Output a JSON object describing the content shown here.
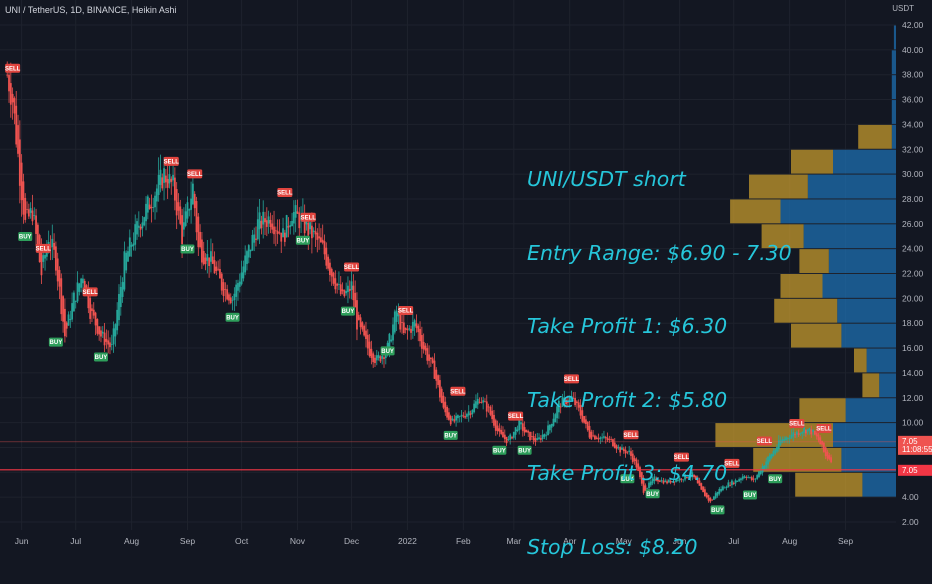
{
  "header": {
    "symbol_line": "UNI / TetherUS, 1D, BINANCE, Heikin Ashi",
    "currency": "USDT"
  },
  "annotation": {
    "lines": [
      "UNI/USDT short",
      "Entry Range: $6.90 - 7.30",
      "Take Profit 1: $6.30",
      "Take Profit 2: $5.80",
      "Take Profit 3: $4.70",
      "Stop Loss: $8.20"
    ]
  },
  "colors": {
    "background": "#131722",
    "up": "#26a69a",
    "down": "#ef5350",
    "annotation": "#26c6da",
    "vp_gold": "#c49a2c",
    "vp_blue": "#1e6fb0",
    "stop_line": "#f23645"
  },
  "chart_data": {
    "type": "candlestick",
    "ylim": [
      1.5,
      43.5
    ],
    "y_ticks": [
      "2.00",
      "4.00",
      "6.00",
      "8.00",
      "10.00",
      "12.00",
      "14.00",
      "16.00",
      "18.00",
      "20.00",
      "22.00",
      "24.00",
      "26.00",
      "28.00",
      "30.00",
      "32.00",
      "34.00",
      "36.00",
      "38.00",
      "40.00",
      "42.00"
    ],
    "x_ticks": [
      "Jun",
      "Jul",
      "Aug",
      "Sep",
      "Oct",
      "Nov",
      "Dec",
      "2022",
      "Feb",
      "Mar",
      "Apr",
      "May",
      "Jun",
      "Jul",
      "Aug",
      "Sep"
    ],
    "price_path": [
      [
        "2021-05-24",
        38.0
      ],
      [
        "2021-05-27",
        36.0
      ],
      [
        "2021-05-31",
        30.0
      ],
      [
        "2021-06-03",
        26.0
      ],
      [
        "2021-06-07",
        27.0
      ],
      [
        "2021-06-12",
        22.0
      ],
      [
        "2021-06-16",
        25.0
      ],
      [
        "2021-06-20",
        23.0
      ],
      [
        "2021-06-25",
        17.0
      ],
      [
        "2021-06-30",
        20.0
      ],
      [
        "2021-07-05",
        22.0
      ],
      [
        "2021-07-09",
        19.0
      ],
      [
        "2021-07-15",
        17.0
      ],
      [
        "2021-07-21",
        16.0
      ],
      [
        "2021-07-28",
        23.0
      ],
      [
        "2021-08-05",
        26.0
      ],
      [
        "2021-08-12",
        28.0
      ],
      [
        "2021-08-19",
        30.0
      ],
      [
        "2021-08-24",
        29.0
      ],
      [
        "2021-08-29",
        25.0
      ],
      [
        "2021-09-04",
        29.0
      ],
      [
        "2021-09-07",
        24.0
      ],
      [
        "2021-09-14",
        23.0
      ],
      [
        "2021-09-20",
        21.0
      ],
      [
        "2021-09-26",
        20.0
      ],
      [
        "2021-10-03",
        23.0
      ],
      [
        "2021-10-10",
        26.0
      ],
      [
        "2021-10-17",
        26.5
      ],
      [
        "2021-10-24",
        25.0
      ],
      [
        "2021-10-29",
        27.0
      ],
      [
        "2021-11-04",
        26.0
      ],
      [
        "2021-11-10",
        25.0
      ],
      [
        "2021-11-15",
        24.0
      ],
      [
        "2021-11-20",
        22.0
      ],
      [
        "2021-11-26",
        20.0
      ],
      [
        "2021-12-01",
        21.0
      ],
      [
        "2021-12-04",
        18.0
      ],
      [
        "2021-12-10",
        16.0
      ],
      [
        "2021-12-15",
        15.0
      ],
      [
        "2021-12-21",
        16.0
      ],
      [
        "2021-12-26",
        19.0
      ],
      [
        "2021-12-30",
        17.0
      ],
      [
        "2022-01-05",
        18.0
      ],
      [
        "2022-01-10",
        16.0
      ],
      [
        "2022-01-16",
        14.0
      ],
      [
        "2022-01-21",
        11.0
      ],
      [
        "2022-01-26",
        10.0
      ],
      [
        "2022-01-31",
        10.5
      ],
      [
        "2022-02-05",
        11.0
      ],
      [
        "2022-02-10",
        12.0
      ],
      [
        "2022-02-15",
        11.0
      ],
      [
        "2022-02-21",
        9.0
      ],
      [
        "2022-02-26",
        8.5
      ],
      [
        "2022-03-04",
        10.0
      ],
      [
        "2022-03-08",
        9.0
      ],
      [
        "2022-03-14",
        8.5
      ],
      [
        "2022-03-20",
        9.5
      ],
      [
        "2022-03-26",
        11.5
      ],
      [
        "2022-04-02",
        12.0
      ],
      [
        "2022-04-06",
        11.0
      ],
      [
        "2022-04-12",
        9.0
      ],
      [
        "2022-04-18",
        8.8
      ],
      [
        "2022-04-24",
        8.5
      ],
      [
        "2022-04-29",
        7.8
      ],
      [
        "2022-05-04",
        7.6
      ],
      [
        "2022-05-08",
        6.5
      ],
      [
        "2022-05-12",
        4.5
      ],
      [
        "2022-05-18",
        5.5
      ],
      [
        "2022-05-25",
        5.2
      ],
      [
        "2022-06-01",
        5.5
      ],
      [
        "2022-06-08",
        5.8
      ],
      [
        "2022-06-13",
        4.5
      ],
      [
        "2022-06-18",
        3.6
      ],
      [
        "2022-06-22",
        4.5
      ],
      [
        "2022-06-27",
        5.0
      ],
      [
        "2022-07-02",
        5.3
      ],
      [
        "2022-07-07",
        5.8
      ],
      [
        "2022-07-12",
        5.3
      ],
      [
        "2022-07-17",
        6.5
      ],
      [
        "2022-07-22",
        7.5
      ],
      [
        "2022-07-27",
        8.5
      ],
      [
        "2022-08-01",
        9.0
      ],
      [
        "2022-08-05",
        9.2
      ],
      [
        "2022-08-09",
        9.5
      ],
      [
        "2022-08-13",
        9.3
      ],
      [
        "2022-08-17",
        8.6
      ],
      [
        "2022-08-21",
        7.3
      ],
      [
        "2022-08-24",
        7.05
      ]
    ],
    "signals": [
      {
        "type": "SELL",
        "date": "2021-05-27",
        "price": 38.0
      },
      {
        "type": "BUY",
        "date": "2021-06-03",
        "price": 25.5
      },
      {
        "type": "SELL",
        "date": "2021-06-13",
        "price": 23.5
      },
      {
        "type": "BUY",
        "date": "2021-06-20",
        "price": 17.0
      },
      {
        "type": "SELL",
        "date": "2021-07-09",
        "price": 20.0
      },
      {
        "type": "BUY",
        "date": "2021-07-15",
        "price": 15.8
      },
      {
        "type": "SELL",
        "date": "2021-08-23",
        "price": 30.5
      },
      {
        "type": "BUY",
        "date": "2021-09-01",
        "price": 24.5
      },
      {
        "type": "SELL",
        "date": "2021-09-05",
        "price": 29.5
      },
      {
        "type": "BUY",
        "date": "2021-09-26",
        "price": 19.0
      },
      {
        "type": "SELL",
        "date": "2021-10-25",
        "price": 28.0
      },
      {
        "type": "BUY",
        "date": "2021-11-04",
        "price": 25.2
      },
      {
        "type": "SELL",
        "date": "2021-11-07",
        "price": 26.0
      },
      {
        "type": "SELL",
        "date": "2021-12-01",
        "price": 22.0
      },
      {
        "type": "BUY",
        "date": "2021-11-29",
        "price": 19.5
      },
      {
        "type": "BUY",
        "date": "2021-12-21",
        "price": 16.3
      },
      {
        "type": "SELL",
        "date": "2021-12-31",
        "price": 18.5
      },
      {
        "type": "SELL",
        "date": "2022-01-29",
        "price": 12.0
      },
      {
        "type": "BUY",
        "date": "2022-01-25",
        "price": 9.5
      },
      {
        "type": "BUY",
        "date": "2022-02-21",
        "price": 8.3
      },
      {
        "type": "SELL",
        "date": "2022-03-02",
        "price": 10.0
      },
      {
        "type": "BUY",
        "date": "2022-03-07",
        "price": 8.3
      },
      {
        "type": "SELL",
        "date": "2022-04-02",
        "price": 13.0
      },
      {
        "type": "SELL",
        "date": "2022-05-05",
        "price": 8.5
      },
      {
        "type": "BUY",
        "date": "2022-05-03",
        "price": 6.0
      },
      {
        "type": "SELL",
        "date": "2022-06-02",
        "price": 6.7
      },
      {
        "type": "BUY",
        "date": "2022-05-17",
        "price": 4.8
      },
      {
        "type": "BUY",
        "date": "2022-06-22",
        "price": 3.5
      },
      {
        "type": "SELL",
        "date": "2022-06-30",
        "price": 6.2
      },
      {
        "type": "BUY",
        "date": "2022-07-10",
        "price": 4.7
      },
      {
        "type": "SELL",
        "date": "2022-07-18",
        "price": 8.0
      },
      {
        "type": "SELL",
        "date": "2022-08-05",
        "price": 9.4
      },
      {
        "type": "BUY",
        "date": "2022-07-24",
        "price": 6.0
      },
      {
        "type": "SELL",
        "date": "2022-08-20",
        "price": 9.0
      }
    ],
    "current_price": {
      "value": 7.05,
      "label": "7.05",
      "countdown": "11:08:55"
    },
    "stop_line_price": 6.2,
    "stop_line_label": "7.05",
    "volume_profile": {
      "bin_size": 2,
      "bins": [
        {
          "low": 2,
          "up": 0,
          "down": 0
        },
        {
          "low": 4,
          "up": 0.32,
          "down": 0.16
        },
        {
          "low": 6,
          "up": 0.42,
          "down": 0.26
        },
        {
          "low": 8,
          "up": 0.56,
          "down": 0.3
        },
        {
          "low": 10,
          "up": 0.22,
          "down": 0.24
        },
        {
          "low": 12,
          "up": 0.08,
          "down": 0.08
        },
        {
          "low": 14,
          "up": 0.06,
          "down": 0.14
        },
        {
          "low": 16,
          "up": 0.24,
          "down": 0.26
        },
        {
          "low": 18,
          "up": 0.3,
          "down": 0.28
        },
        {
          "low": 20,
          "up": 0.2,
          "down": 0.35
        },
        {
          "low": 22,
          "up": 0.14,
          "down": 0.32
        },
        {
          "low": 24,
          "up": 0.2,
          "down": 0.44
        },
        {
          "low": 26,
          "up": 0.24,
          "down": 0.55
        },
        {
          "low": 28,
          "up": 0.28,
          "down": 0.42
        },
        {
          "low": 30,
          "up": 0.2,
          "down": 0.3
        },
        {
          "low": 32,
          "up": 0.16,
          "down": 0.02
        },
        {
          "low": 34,
          "up": 0.0,
          "down": 0.02
        },
        {
          "low": 36,
          "up": 0.0,
          "down": 0.02
        },
        {
          "low": 38,
          "up": 0.0,
          "down": 0.02
        },
        {
          "low": 40,
          "up": 0.0,
          "down": 0.01
        }
      ]
    }
  }
}
